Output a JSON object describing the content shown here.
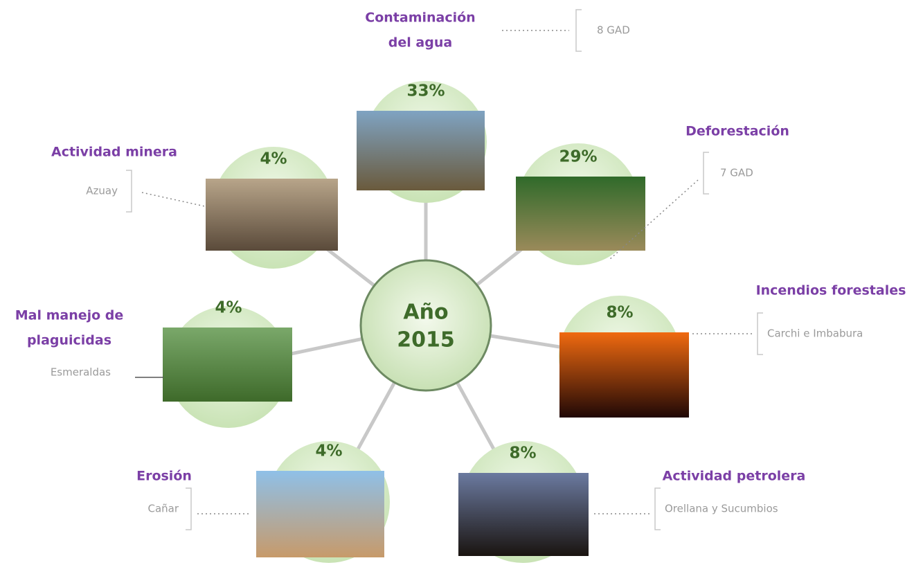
{
  "center": {
    "lines": [
      "Año",
      "2015"
    ]
  },
  "nodes": [
    {
      "title": [
        "Contaminación",
        "del agua"
      ],
      "percent": "33%",
      "detail": "8 GAD"
    },
    {
      "title": [
        "Deforestación"
      ],
      "percent": "29%",
      "detail": "7 GAD"
    },
    {
      "title": [
        "Incendios forestales"
      ],
      "percent": "8%",
      "detail": "Carchi e Imbabura"
    },
    {
      "title": [
        "Actividad petrolera"
      ],
      "percent": "8%",
      "detail": "Orellana y Sucumbios"
    },
    {
      "title": [
        "Erosión"
      ],
      "percent": "4%",
      "detail": "Cañar"
    },
    {
      "title": [
        "Mal manejo de",
        "plaguicidas"
      ],
      "percent": "4%",
      "detail": "Esmeraldas"
    },
    {
      "title": [
        "Actividad minera"
      ],
      "percent": "4%",
      "detail": "Azuay"
    }
  ]
}
